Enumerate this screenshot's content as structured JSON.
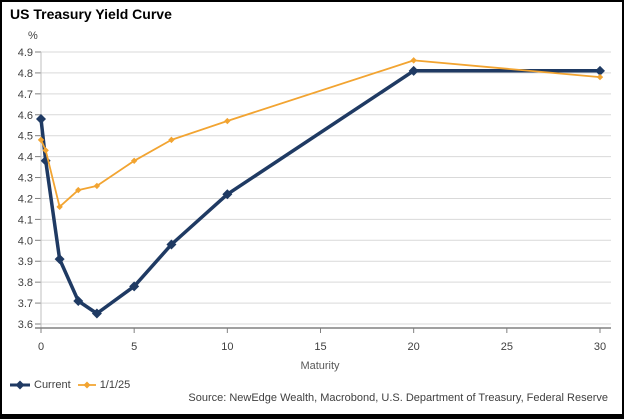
{
  "chart": {
    "title": "US Treasury Yield Curve",
    "y_unit_label": "%",
    "x_axis_label": "Maturity",
    "source_note": "Source: NewEdge Wealth, Macrobond, U.S. Department of Treasury, Federal Reserve"
  },
  "chart_data": {
    "type": "line",
    "title": "US Treasury Yield Curve",
    "xlabel": "Maturity",
    "ylabel": "%",
    "xlim": [
      0,
      30
    ],
    "ylim": [
      3.6,
      4.9
    ],
    "x_ticks": [
      0,
      5,
      10,
      15,
      20,
      25,
      30
    ],
    "y_ticks": [
      3.6,
      3.7,
      3.8,
      3.9,
      4.0,
      4.1,
      4.2,
      4.3,
      4.4,
      4.5,
      4.6,
      4.7,
      4.8,
      4.9
    ],
    "grid": "horizontal",
    "legend_position": "bottom-left",
    "x": [
      0,
      0.25,
      1,
      2,
      3,
      5,
      7,
      10,
      20,
      30
    ],
    "series": [
      {
        "name": "Current",
        "color": "#1F3A63",
        "line_width": 3.5,
        "marker": "diamond",
        "marker_size": 5,
        "values": [
          4.58,
          4.38,
          3.91,
          3.71,
          3.65,
          3.78,
          3.98,
          4.22,
          4.81,
          4.81
        ]
      },
      {
        "name": "1/1/25",
        "color": "#F2A431",
        "line_width": 1.8,
        "marker": "diamond",
        "marker_size": 3.2,
        "values": [
          4.48,
          4.43,
          4.16,
          4.24,
          4.26,
          4.38,
          4.48,
          4.57,
          4.86,
          4.78
        ]
      }
    ],
    "colors": {
      "gridline": "#D9D9D9",
      "axis": "#808080",
      "tick_label": "#404040",
      "axis_label": "#595959"
    }
  }
}
